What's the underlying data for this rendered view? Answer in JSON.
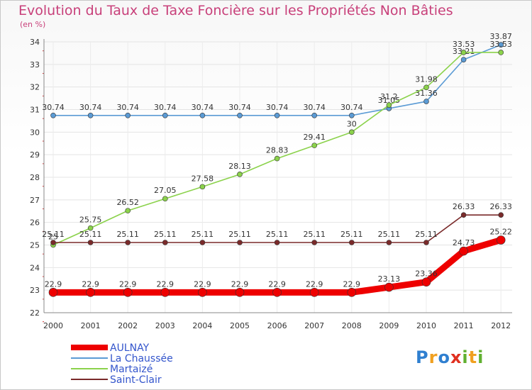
{
  "chart_data": {
    "type": "line",
    "title": "Evolution du Taux de Taxe Foncière sur les Propriétés Non Bâties",
    "ylabel": "(en %)",
    "xlabel": "",
    "ylim": [
      22,
      34
    ],
    "yticks": [
      "22",
      "23",
      "24",
      "25",
      "26",
      "27",
      "28",
      "29",
      "30",
      "31",
      "32",
      "33",
      "34"
    ],
    "categories": [
      "2000",
      "2001",
      "2002",
      "2003",
      "2004",
      "2005",
      "2006",
      "2007",
      "2008",
      "2009",
      "2010",
      "2011",
      "2012"
    ],
    "series": [
      {
        "name": "La Chaussée",
        "color": "#5b9bd5",
        "values": [
          30.74,
          30.74,
          30.74,
          30.74,
          30.74,
          30.74,
          30.74,
          30.74,
          30.74,
          31.05,
          31.36,
          33.21,
          33.87
        ],
        "labels": [
          "30.74",
          "30.74",
          "30.74",
          "30.74",
          "30.74",
          "30.74",
          "30.74",
          "30.74",
          "30.74",
          "31.05",
          "31.36",
          "33.21",
          "33.87"
        ]
      },
      {
        "name": "Martaizé",
        "color": "#8bd24b",
        "values": [
          25,
          25.75,
          26.52,
          27.05,
          27.58,
          28.13,
          28.83,
          29.41,
          30,
          31.2,
          31.98,
          33.53,
          33.53
        ],
        "labels": [
          "25",
          "25.75",
          "26.52",
          "27.05",
          "27.58",
          "28.13",
          "28.83",
          "29.41",
          "30",
          "31.2",
          "31.98",
          "33.53",
          "33.53"
        ]
      },
      {
        "name": "Saint-Clair",
        "color": "#7a2a2a",
        "values": [
          25.11,
          25.11,
          25.11,
          25.11,
          25.11,
          25.11,
          25.11,
          25.11,
          25.11,
          25.11,
          25.11,
          26.33,
          26.33
        ],
        "labels": [
          "25.11",
          "25.11",
          "25.11",
          "25.11",
          "25.11",
          "25.11",
          "25.11",
          "25.11",
          "25.11",
          "25.11",
          "25.11",
          "26.33",
          "26.33"
        ]
      },
      {
        "name": "AULNAY",
        "color": "#ee0000",
        "values": [
          22.9,
          22.9,
          22.9,
          22.9,
          22.9,
          22.9,
          22.9,
          22.9,
          22.9,
          23.13,
          23.36,
          24.73,
          25.22
        ],
        "labels": [
          "22.9",
          "22.9",
          "22.9",
          "22.9",
          "22.9",
          "22.9",
          "22.9",
          "22.9",
          "22.9",
          "23.13",
          "23.36",
          "24.73",
          "25.22"
        ]
      }
    ],
    "legend": [
      "AULNAY",
      "La Chaussée",
      "Martaizé",
      "Saint-Clair"
    ],
    "legend_placement": "bottom-left",
    "grid": true
  },
  "logo": {
    "text": "Proxiti",
    "letters": [
      "P",
      "r",
      "o",
      "x",
      "i",
      "t",
      "i"
    ],
    "colors": [
      "#2f7fd0",
      "#f0a020",
      "#2f7fd0",
      "#e03020",
      "#60b030",
      "#f0a020",
      "#60b030"
    ]
  }
}
